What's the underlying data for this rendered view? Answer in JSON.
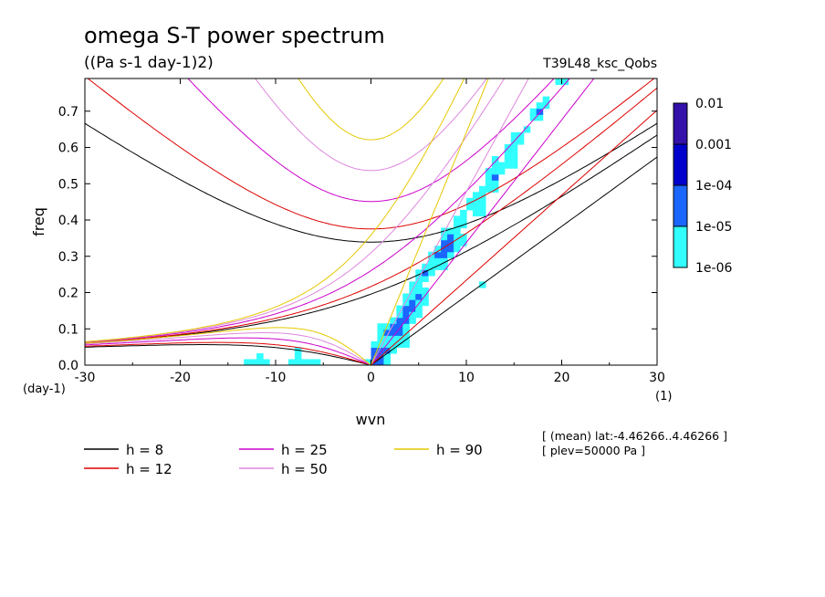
{
  "chart_data": {
    "type": "heatmap",
    "title": "omega S-T power spectrum",
    "subtitle": "((Pa s-1 day-1)2)",
    "run_label": "T39L48_ksc_Qobs",
    "xlabel": "wvn",
    "ylabel": "freq",
    "x_unit": "(1)",
    "y_unit": "(day-1)",
    "xlim": [
      -30,
      30
    ],
    "ylim": [
      0,
      0.79
    ],
    "xticks": [
      -30,
      -20,
      -10,
      0,
      10,
      20,
      30
    ],
    "yticks": [
      0.0,
      0.1,
      0.2,
      0.3,
      0.4,
      0.5,
      0.6,
      0.7
    ],
    "xtick_labels": [
      "-30",
      "-20",
      "-10",
      "0",
      "10",
      "20",
      "30"
    ],
    "ytick_labels": [
      "0.0",
      "0.1",
      "0.2",
      "0.3",
      "0.4",
      "0.5",
      "0.6",
      "0.7"
    ],
    "colorbar": {
      "labels": [
        "0.01",
        "0.001",
        "1e-04",
        "1e-05",
        "1e-06"
      ],
      "levels": [
        1e-06,
        1e-05,
        0.0001,
        0.001,
        0.01
      ],
      "colors": [
        "#33ffff",
        "#1a66ff",
        "#0000cc",
        "#3311aa"
      ]
    },
    "dispersion_curves": [
      {
        "label": "h =  8",
        "h": 8,
        "color": "#000000"
      },
      {
        "label": "h = 12",
        "h": 12,
        "color": "#dd0000"
      },
      {
        "label": "h = 25",
        "h": 25,
        "color": "#cc00cc"
      },
      {
        "label": "h = 50",
        "h": 50,
        "color": "#dd88dd"
      },
      {
        "label": "h = 90",
        "h": 90,
        "color": "#e6c800"
      }
    ],
    "annotations": [
      "[ (mean) lat:-4.46266..4.46266 ]",
      "[ plev=50000 Pa ]"
    ]
  }
}
